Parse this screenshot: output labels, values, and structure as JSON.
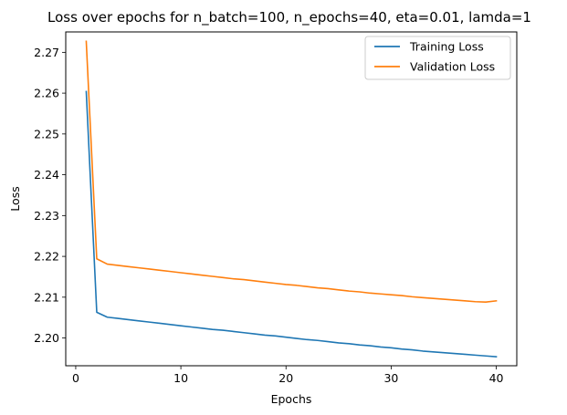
{
  "chart_data": {
    "type": "line",
    "title": "Loss over epochs for n_batch=100, n_epochs=40, eta=0.01, lamda=1",
    "xlabel": "Epochs",
    "ylabel": "Loss",
    "xlim": [
      -0.95,
      41.95
    ],
    "ylim": [
      2.1932,
      2.275
    ],
    "xticks": [
      0,
      10,
      20,
      30,
      40
    ],
    "yticks": [
      2.2,
      2.21,
      2.22,
      2.23,
      2.24,
      2.25,
      2.26,
      2.27
    ],
    "ytick_labels": [
      "2.20",
      "2.21",
      "2.22",
      "2.23",
      "2.24",
      "2.25",
      "2.26",
      "2.27"
    ],
    "grid": false,
    "legend_position": "top-right",
    "x": [
      1,
      2,
      3,
      4,
      5,
      6,
      7,
      8,
      9,
      10,
      11,
      12,
      13,
      14,
      15,
      16,
      17,
      18,
      19,
      20,
      21,
      22,
      23,
      24,
      25,
      26,
      27,
      28,
      29,
      30,
      31,
      32,
      33,
      34,
      35,
      36,
      37,
      38,
      39,
      40
    ],
    "series": [
      {
        "name": "Training Loss",
        "color": "#1f77b4",
        "values": [
          2.2604,
          2.2063,
          2.2051,
          2.2048,
          2.2045,
          2.2042,
          2.2039,
          2.2036,
          2.2033,
          2.203,
          2.2027,
          2.2024,
          2.2021,
          2.2019,
          2.2016,
          2.2013,
          2.201,
          2.2007,
          2.2005,
          2.2002,
          2.1999,
          2.1996,
          2.1994,
          2.1991,
          2.1988,
          2.1986,
          2.1983,
          2.1981,
          2.1978,
          2.1976,
          2.1973,
          2.1971,
          2.1968,
          2.1966,
          2.1964,
          2.1962,
          2.196,
          2.1958,
          2.1956,
          2.1954
        ]
      },
      {
        "name": "Validation Loss",
        "color": "#ff7f0e",
        "values": [
          2.2727,
          2.2194,
          2.2181,
          2.2178,
          2.2175,
          2.2172,
          2.2169,
          2.2166,
          2.2163,
          2.216,
          2.2157,
          2.2154,
          2.2151,
          2.2148,
          2.2145,
          2.2143,
          2.214,
          2.2137,
          2.2134,
          2.2131,
          2.2129,
          2.2126,
          2.2123,
          2.2121,
          2.2118,
          2.2115,
          2.2113,
          2.211,
          2.2108,
          2.2106,
          2.2104,
          2.2101,
          2.2099,
          2.2097,
          2.2095,
          2.2093,
          2.2091,
          2.2089,
          2.2088,
          2.2091
        ]
      }
    ]
  }
}
